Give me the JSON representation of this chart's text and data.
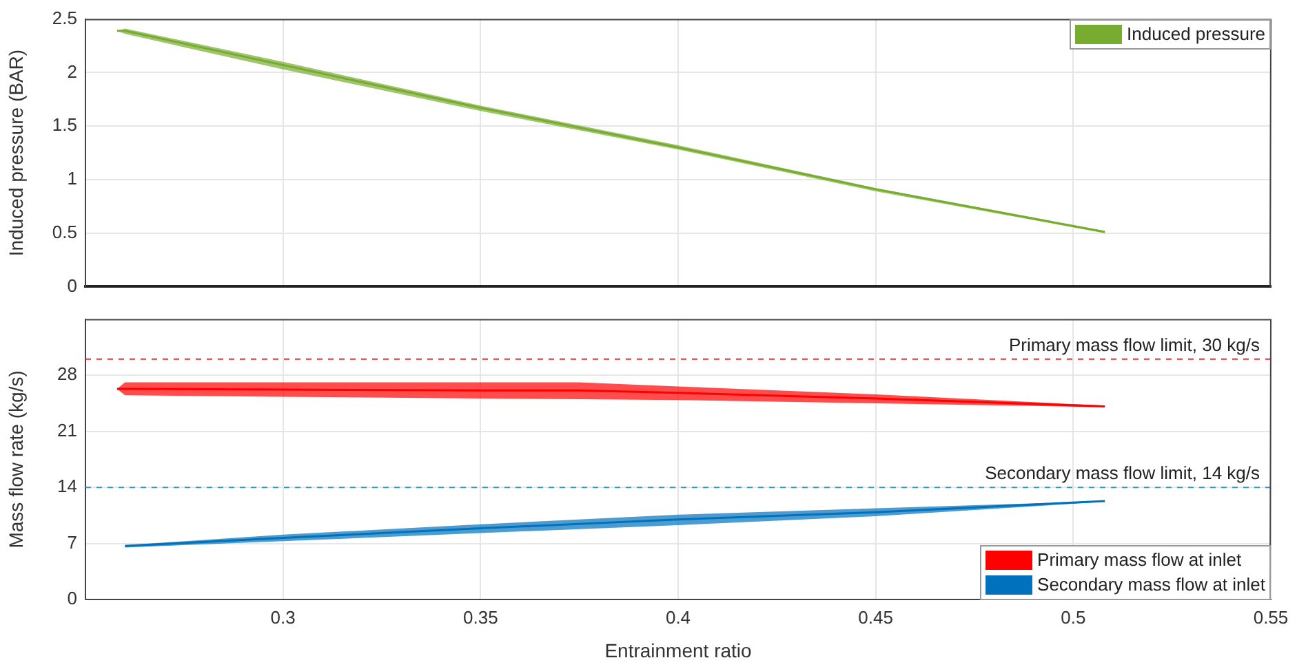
{
  "chart_data": [
    {
      "type": "line",
      "ylabel": "Induced pressure (BAR)",
      "xlim": [
        0.25,
        0.55
      ],
      "xticks": [
        0.3,
        0.35,
        0.4,
        0.45,
        0.5,
        0.55
      ],
      "ylim": [
        0,
        2.5
      ],
      "yticks": [
        0,
        0.5,
        1,
        1.5,
        2,
        2.5
      ],
      "tick_labels": "y",
      "grid": true,
      "legend": "top right",
      "series": [
        {
          "name": "Induced pressure",
          "color": "#77ac30",
          "x": [
            0.258,
            0.26,
            0.3,
            0.35,
            0.4,
            0.45,
            0.508
          ],
          "values": [
            2.39,
            2.39,
            2.07,
            1.67,
            1.3,
            0.91,
            0.51
          ],
          "lower": [
            2.39,
            2.36,
            2.03,
            1.64,
            1.28,
            0.89,
            0.5
          ],
          "upper": [
            2.39,
            2.41,
            2.1,
            1.69,
            1.32,
            0.92,
            0.52
          ]
        }
      ]
    },
    {
      "type": "line",
      "xlabel": "Entrainment ratio",
      "ylabel": "Mass flow rate (kg/s)",
      "xlim": [
        0.25,
        0.55
      ],
      "xticks": [
        0.3,
        0.35,
        0.4,
        0.45,
        0.5,
        0.55
      ],
      "ylim": [
        0,
        35
      ],
      "yticks": [
        0,
        7,
        14,
        21,
        28
      ],
      "grid": true,
      "legend": "bottom right",
      "ref_lines": [
        {
          "axis": "y",
          "value": 30,
          "label": "Primary mass flow limit, 30 kg/s",
          "color": "#e03030",
          "line_style": "dashed"
        },
        {
          "axis": "y",
          "value": 14,
          "label": "Secondary mass flow limit, 14 kg/s",
          "color": "#3c8fb8",
          "line_style": "dashed"
        }
      ],
      "series": [
        {
          "name": "Primary mass flow at inlet",
          "color": "#ff0000",
          "x": [
            0.258,
            0.26,
            0.3,
            0.35,
            0.375,
            0.4,
            0.45,
            0.508
          ],
          "values": [
            26.3,
            26.3,
            26.2,
            26.1,
            26.1,
            25.8,
            25.1,
            24.1
          ],
          "lower": [
            26.3,
            25.5,
            25.3,
            25.1,
            25.0,
            24.9,
            24.5,
            24.0
          ],
          "upper": [
            26.3,
            27.1,
            27.1,
            27.1,
            27.1,
            26.6,
            25.6,
            24.2
          ]
        },
        {
          "name": "Secondary mass flow at inlet",
          "color": "#0072bd",
          "x": [
            0.26,
            0.3,
            0.35,
            0.4,
            0.45,
            0.508
          ],
          "values": [
            6.7,
            7.7,
            8.9,
            10.0,
            10.9,
            12.3
          ],
          "lower": [
            6.5,
            7.3,
            8.3,
            9.3,
            10.4,
            12.2
          ],
          "upper": [
            6.8,
            8.1,
            9.4,
            10.6,
            11.4,
            12.3
          ]
        }
      ]
    }
  ]
}
